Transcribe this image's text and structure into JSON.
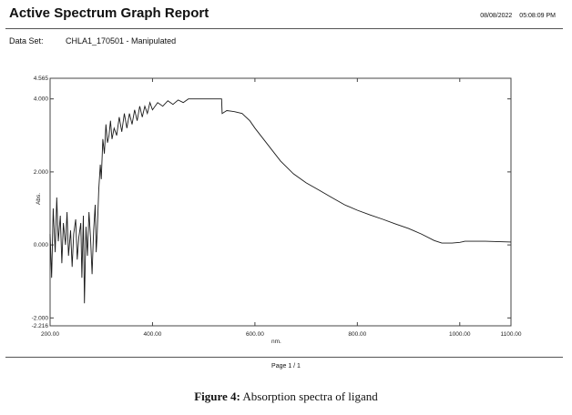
{
  "header": {
    "title": "Active Spectrum Graph Report",
    "date": "08/08/2022",
    "time": "05:08:09 PM"
  },
  "dataset": {
    "label": "Data Set:",
    "value": "CHLA1_170501 - Manipulated"
  },
  "footer": {
    "page": "Page 1 / 1"
  },
  "caption": {
    "label": "Figure 4:",
    "text": " Absorption spectra of ligand"
  },
  "chart_data": {
    "type": "line",
    "title": "",
    "xlabel": "nm.",
    "ylabel": "Abs.",
    "xlim": [
      200,
      1100
    ],
    "ylim": [
      -2.216,
      4.565
    ],
    "xticks": [
      "200.00",
      "400.00",
      "600.00",
      "800.00",
      "1000.00",
      "1100.00"
    ],
    "xtick_values": [
      200,
      400,
      600,
      800,
      1000,
      1100
    ],
    "yticks": [
      "4.565",
      "4.000",
      "2.000",
      "0.000",
      "-2.000",
      "-2.216"
    ],
    "ytick_values": [
      4.565,
      4.0,
      2.0,
      0.0,
      -2.0,
      -2.216
    ],
    "grid": false,
    "series": [
      {
        "name": "CHLA1_170501",
        "color": "#1a1a1a",
        "x": [
          200,
          203,
          206,
          210,
          213,
          216,
          220,
          223,
          226,
          230,
          233,
          236,
          240,
          243,
          246,
          250,
          253,
          256,
          260,
          262,
          265,
          267,
          270,
          273,
          276,
          279,
          282,
          285,
          288,
          290,
          292,
          295,
          298,
          300,
          303,
          306,
          309,
          312,
          315,
          318,
          321,
          325,
          330,
          335,
          340,
          345,
          350,
          355,
          360,
          365,
          370,
          375,
          380,
          385,
          390,
          395,
          400,
          410,
          420,
          430,
          440,
          450,
          460,
          470,
          480,
          535,
          536,
          545,
          560,
          575,
          590,
          600,
          625,
          650,
          675,
          700,
          725,
          750,
          775,
          800,
          825,
          850,
          875,
          900,
          925,
          950,
          965,
          985,
          1000,
          1010,
          1050,
          1100
        ],
        "y": [
          0.3,
          -0.9,
          1.0,
          -0.2,
          1.3,
          0.1,
          0.8,
          -0.5,
          0.6,
          0.0,
          0.9,
          -0.3,
          0.4,
          -0.6,
          0.3,
          0.7,
          -0.4,
          0.2,
          0.6,
          -0.9,
          0.8,
          -1.6,
          0.5,
          -0.3,
          0.9,
          0.2,
          -0.8,
          0.4,
          1.1,
          -0.2,
          0.3,
          1.5,
          2.2,
          1.8,
          2.9,
          2.5,
          3.3,
          2.8,
          3.0,
          3.4,
          2.9,
          3.2,
          3.0,
          3.5,
          3.1,
          3.6,
          3.2,
          3.6,
          3.3,
          3.7,
          3.4,
          3.8,
          3.5,
          3.8,
          3.6,
          3.9,
          3.7,
          3.9,
          3.8,
          3.95,
          3.85,
          3.97,
          3.9,
          4.0,
          4.0,
          4.0,
          3.6,
          3.68,
          3.65,
          3.6,
          3.4,
          3.2,
          2.75,
          2.3,
          1.95,
          1.7,
          1.5,
          1.3,
          1.1,
          0.95,
          0.82,
          0.7,
          0.57,
          0.45,
          0.3,
          0.12,
          0.05,
          0.05,
          0.07,
          0.1,
          0.1,
          0.08
        ]
      }
    ]
  }
}
